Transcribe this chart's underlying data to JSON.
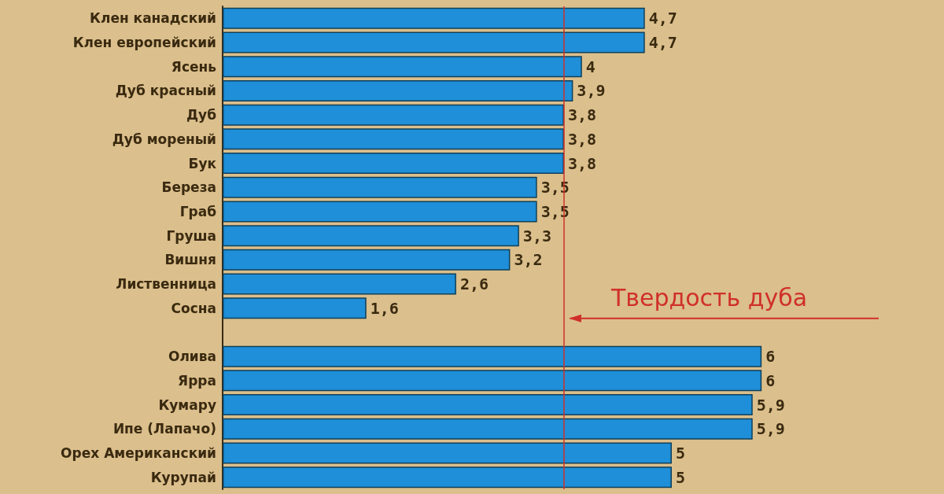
{
  "chart_data": {
    "type": "bar",
    "orientation": "horizontal",
    "categories": [
      "Клен канадский",
      "Клен европейский",
      "Ясень",
      "Дуб красный",
      "Дуб",
      "Дуб мореный",
      "Бук",
      "Береза",
      "Граб",
      "Груша",
      "Вишня",
      "Лиственница",
      "Сосна",
      null,
      "Олива",
      "Ярра",
      "Кумару",
      "Ипе (Лапачо)",
      "Орех Американский",
      "Курупай"
    ],
    "values": [
      4.7,
      4.7,
      4.0,
      3.9,
      3.8,
      3.8,
      3.8,
      3.5,
      3.5,
      3.3,
      3.2,
      2.6,
      1.6,
      null,
      6,
      6,
      5.9,
      5.9,
      5,
      5
    ],
    "value_labels": [
      "4,7",
      "4,7",
      "4",
      "3,9",
      "3,8",
      "3,8",
      "3,8",
      "3,5",
      "3,5",
      "3,3",
      "3,2",
      "2,6",
      "1,6",
      null,
      "6",
      "6",
      "5,9",
      "5,9",
      "5",
      "5"
    ],
    "color": "#1e8fd8",
    "ref_lines": [
      {
        "axis": "x",
        "value": 3.8,
        "label": "Твердость дуба",
        "color": "#d0302a"
      }
    ]
  }
}
